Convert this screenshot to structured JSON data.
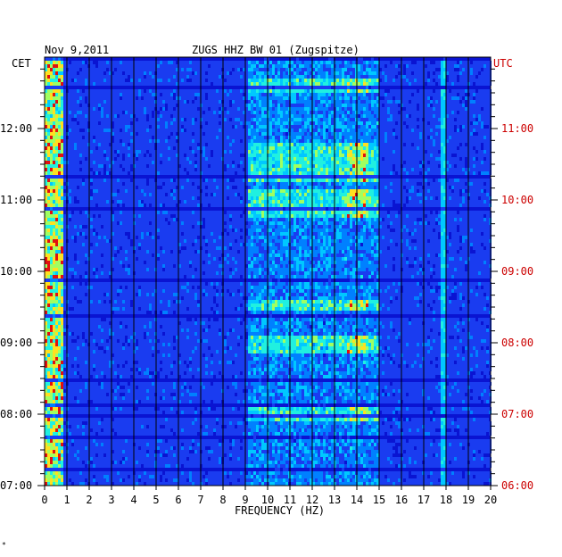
{
  "header": {
    "date": "Nov 9,2011",
    "station": "ZUGS HHZ BW 01 (Zugspitze)",
    "left_zone": "CET",
    "right_zone": "UTC"
  },
  "chart_data": {
    "type": "heatmap",
    "title": "ZUGS HHZ BW 01 (Zugspitze)",
    "date": "Nov 9,2011",
    "xlabel": "FREQUENCY (HZ)",
    "xlim": [
      0,
      20
    ],
    "x_ticks": [
      "0",
      "1",
      "2",
      "3",
      "4",
      "5",
      "6",
      "7",
      "8",
      "9",
      "10",
      "11",
      "12",
      "13",
      "14",
      "15",
      "16",
      "17",
      "18",
      "19",
      "20"
    ],
    "y_left_label": "CET",
    "y_right_label": "UTC",
    "y_ticks_left": [
      "07:00",
      "08:00",
      "09:00",
      "10:00",
      "11:00",
      "12:00"
    ],
    "y_ticks_right": [
      "06:00",
      "07:00",
      "08:00",
      "09:00",
      "10:00",
      "11:00"
    ],
    "time_range_cet": [
      "07:00",
      "12:50"
    ],
    "grid": true,
    "colors": {
      "background": "#0a14d2",
      "low": "#0a14c8",
      "mid": "#0080ff",
      "high": "#20f0e0",
      "peak": "#ffe020",
      "max": "#e01010",
      "frame": "#000000",
      "utc_text": "#cc0000"
    },
    "features": [
      {
        "freq": [
          0,
          0.8
        ],
        "level": "high",
        "note": "persistent low-frequency energy"
      },
      {
        "freq": [
          9,
          15
        ],
        "level": "mid",
        "note": "intermittent broadband bursts"
      },
      {
        "freq": [
          13.5,
          14.5
        ],
        "level": "peak",
        "note": "bursts near 07:40, 09:00, 09:40, 10:50"
      },
      {
        "freq": [
          17.8,
          17.8
        ],
        "level": "high",
        "note": "narrow line"
      }
    ]
  }
}
